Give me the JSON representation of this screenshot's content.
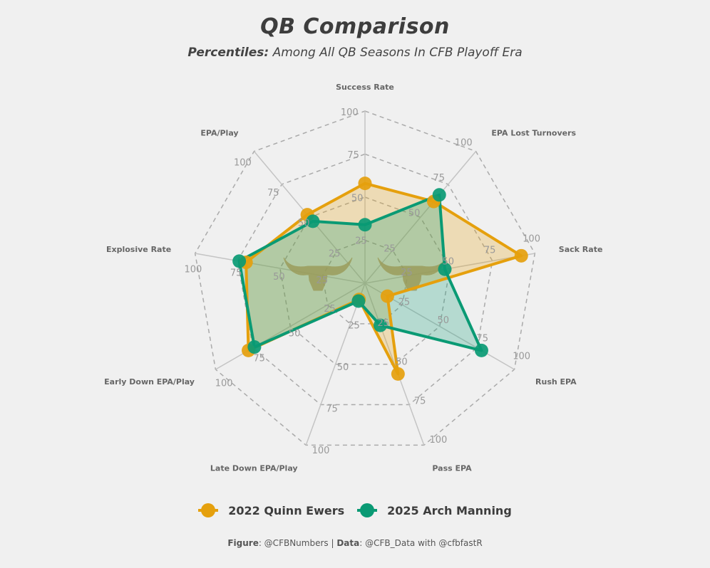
{
  "title": "QB Comparison",
  "subtitle_bold": "Percentiles:",
  "subtitle_rest": "Among All QB Seasons In CFB Playoff Era",
  "footer": {
    "figure_label": "Figure",
    "figure_value": ": @CFBNumbers | ",
    "data_label": "Data",
    "data_value": ": @CFB_Data with @cfbfastR"
  },
  "colors": {
    "ewers": "#e5a00d",
    "manning": "#0a9a74",
    "grid": "#aaaaaa",
    "spoke": "#c4c4c4",
    "logo": "#c49a66"
  },
  "chart_data": {
    "type": "radar",
    "title": "QB Comparison",
    "subtitle": "Percentiles: Among All QB Seasons In CFB Playoff Era",
    "axes": [
      "Success Rate",
      "EPA Lost Turnovers",
      "Sack Rate",
      "Rush EPA",
      "Pass EPA",
      "Late Down EPA/Play",
      "Early Down EPA/Play",
      "Explosive Rate",
      "EPA/Play"
    ],
    "range": [
      0,
      100
    ],
    "ticks": [
      25,
      50,
      75,
      100
    ],
    "tick_labels": [
      "25",
      "50",
      "75",
      "100"
    ],
    "grid": true,
    "legend_position": "bottom",
    "series": [
      {
        "name": "2022 Quinn Ewers",
        "values": [
          58,
          62,
          92,
          15,
          56,
          10,
          78,
          70,
          52
        ]
      },
      {
        "name": "2025 Arch Manning",
        "values": [
          34,
          67,
          47,
          78,
          26,
          11,
          74,
          74,
          47
        ]
      }
    ]
  }
}
